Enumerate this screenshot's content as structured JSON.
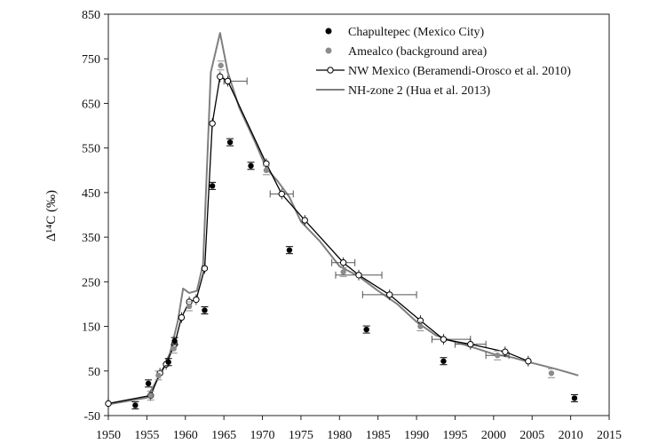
{
  "chart_data": {
    "type": "scatter",
    "title": "",
    "xlabel": "",
    "ylabel": "Δ¹⁴C (‰)",
    "xlim": [
      1950,
      2015
    ],
    "ylim": [
      -50,
      850
    ],
    "xticks": [
      "1950",
      "1955",
      "1960",
      "1965",
      "1970",
      "1975",
      "1980",
      "1985",
      "1990",
      "1995",
      "2000",
      "2005",
      "2010",
      "2015"
    ],
    "yticks": [
      "-50",
      "50",
      "150",
      "250",
      "350",
      "450",
      "550",
      "650",
      "750",
      "850"
    ],
    "grid": false,
    "legend_position": "top-right",
    "series": [
      {
        "name": "Chapultepec (Mexico City)",
        "kind": "points",
        "color": "#000000",
        "points": [
          {
            "x": 1953.5,
            "y": -27
          },
          {
            "x": 1955.2,
            "y": 22
          },
          {
            "x": 1957.8,
            "y": 70
          },
          {
            "x": 1958.6,
            "y": 117
          },
          {
            "x": 1962.5,
            "y": 186
          },
          {
            "x": 1963.5,
            "y": 465
          },
          {
            "x": 1965.8,
            "y": 563
          },
          {
            "x": 1968.5,
            "y": 510
          },
          {
            "x": 1973.5,
            "y": 321
          },
          {
            "x": 1983.5,
            "y": 143
          },
          {
            "x": 1993.5,
            "y": 72
          },
          {
            "x": 2010.5,
            "y": -11
          }
        ]
      },
      {
        "name": "Amealco (background area)",
        "kind": "points",
        "color": "#8c8c8c",
        "points": [
          {
            "x": 1955.5,
            "y": -5
          },
          {
            "x": 1956.5,
            "y": 40
          },
          {
            "x": 1958.5,
            "y": 100
          },
          {
            "x": 1960.5,
            "y": 195
          },
          {
            "x": 1964.6,
            "y": 735
          },
          {
            "x": 1970.5,
            "y": 500
          },
          {
            "x": 1980.5,
            "y": 272
          },
          {
            "x": 1990.5,
            "y": 150
          },
          {
            "x": 2000.5,
            "y": 85
          },
          {
            "x": 2007.5,
            "y": 45
          }
        ]
      },
      {
        "name": "NW Mexico (Beramendi-Orosco et al. 2010)",
        "kind": "line-markers",
        "color": "#000000",
        "points": [
          {
            "x": 1950,
            "y": -23
          },
          {
            "x": 1955.5,
            "y": -5
          },
          {
            "x": 1956.7,
            "y": 45
          },
          {
            "x": 1957.5,
            "y": 65
          },
          {
            "x": 1958.6,
            "y": 110
          },
          {
            "x": 1959.5,
            "y": 170
          },
          {
            "x": 1960.5,
            "y": 205
          },
          {
            "x": 1961.4,
            "y": 210
          },
          {
            "x": 1962.5,
            "y": 280
          },
          {
            "x": 1963.5,
            "y": 605
          },
          {
            "x": 1964.5,
            "y": 710
          },
          {
            "x": 1965.5,
            "y": 700
          },
          {
            "x": 1970.5,
            "y": 515
          },
          {
            "x": 1972.5,
            "y": 447
          },
          {
            "x": 1975.5,
            "y": 388
          },
          {
            "x": 1980.5,
            "y": 293
          },
          {
            "x": 1982.5,
            "y": 265
          },
          {
            "x": 1986.5,
            "y": 221
          },
          {
            "x": 1990.5,
            "y": 163
          },
          {
            "x": 1993.5,
            "y": 121
          },
          {
            "x": 1997,
            "y": 110
          },
          {
            "x": 2001.5,
            "y": 93
          },
          {
            "x": 2004.5,
            "y": 72
          }
        ]
      },
      {
        "name": "NH-zone 2 (Hua et al. 2013)",
        "kind": "line",
        "color": "#7f7f7f",
        "points": [
          {
            "x": 1950,
            "y": -25
          },
          {
            "x": 1955,
            "y": -10
          },
          {
            "x": 1956,
            "y": 20
          },
          {
            "x": 1957,
            "y": 50
          },
          {
            "x": 1958,
            "y": 90
          },
          {
            "x": 1959,
            "y": 160
          },
          {
            "x": 1959.7,
            "y": 235
          },
          {
            "x": 1960.5,
            "y": 225
          },
          {
            "x": 1961.5,
            "y": 230
          },
          {
            "x": 1962.3,
            "y": 290
          },
          {
            "x": 1963.3,
            "y": 720
          },
          {
            "x": 1964.5,
            "y": 808
          },
          {
            "x": 1965.5,
            "y": 720
          },
          {
            "x": 1967,
            "y": 640
          },
          {
            "x": 1969,
            "y": 565
          },
          {
            "x": 1970.5,
            "y": 505
          },
          {
            "x": 1972,
            "y": 475
          },
          {
            "x": 1973.5,
            "y": 440
          },
          {
            "x": 1975,
            "y": 385
          },
          {
            "x": 1977.5,
            "y": 340
          },
          {
            "x": 1980,
            "y": 285
          },
          {
            "x": 1982.5,
            "y": 262
          },
          {
            "x": 1985,
            "y": 230
          },
          {
            "x": 1987.5,
            "y": 200
          },
          {
            "x": 1990,
            "y": 160
          },
          {
            "x": 1992.5,
            "y": 130
          },
          {
            "x": 1995,
            "y": 115
          },
          {
            "x": 1997.5,
            "y": 102
          },
          {
            "x": 2000,
            "y": 88
          },
          {
            "x": 2002.5,
            "y": 80
          },
          {
            "x": 2005,
            "y": 68
          },
          {
            "x": 2008,
            "y": 55
          },
          {
            "x": 2011,
            "y": 40
          }
        ]
      }
    ],
    "xerror_bars": [
      {
        "x": 1966.5,
        "y": 700,
        "err": 1.5
      },
      {
        "x": 1972.5,
        "y": 447,
        "err": 1.5
      },
      {
        "x": 1982.5,
        "y": 265,
        "err": 3
      },
      {
        "x": 1986.5,
        "y": 221,
        "err": 3.5
      },
      {
        "x": 1994.5,
        "y": 121,
        "err": 2.5
      },
      {
        "x": 1997,
        "y": 110,
        "err": 2
      },
      {
        "x": 2000.5,
        "y": 85,
        "err": 1.5
      },
      {
        "x": 1980.5,
        "y": 293,
        "err": 1.5
      }
    ]
  }
}
